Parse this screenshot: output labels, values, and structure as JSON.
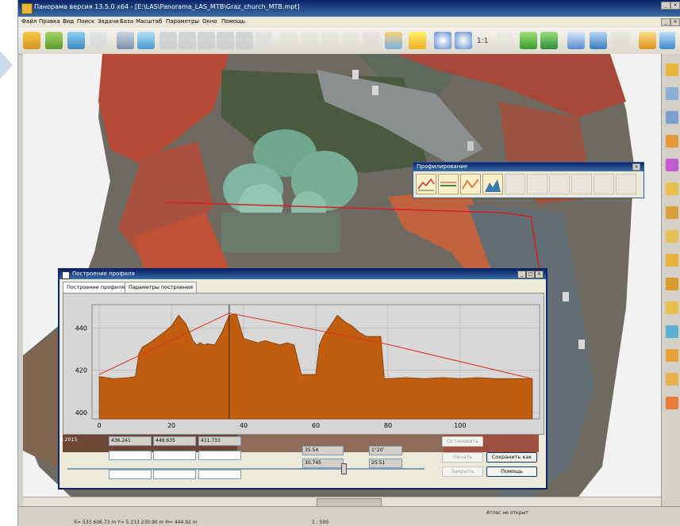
{
  "window": {
    "title": "Панорама версия 13.5.0 x64 - [E:\\LAS\\Panorama_LAS_MTB\\Graz_church_MTB.mpt]"
  },
  "menu": {
    "items": [
      "Файл",
      "Правка",
      "Вид",
      "Поиск",
      "Задачи",
      "База",
      "Масштаб",
      "Параметры",
      "Окно",
      "Помощь"
    ]
  },
  "toolbar": {
    "zoom_label": "1:1"
  },
  "profile_panel": {
    "title": "Профилирование"
  },
  "profile_dialog": {
    "title": "Построение профиля",
    "tabs": [
      "Построение профиля",
      "Параметры построения"
    ],
    "fields": {
      "left_label": "9.2015",
      "f1": "436.241",
      "f2": "449.635",
      "f3": "411.733",
      "f4": "35.54",
      "f5": "1°20'",
      "f6": "30.745",
      "f7": "25.51"
    },
    "buttons": {
      "apply": "Остановить",
      "print": "Печать",
      "save_as": "Сохранить как",
      "close": "Закрыть",
      "help": "Помощь"
    }
  },
  "status": {
    "coords": "X= 533 606.73 m  Y= 5 213 230.90 m  H= 444.92 m",
    "scale": "1 : 500",
    "atlas": "Атлас не открыт"
  },
  "chart_data": {
    "type": "area",
    "title": "",
    "xlabel": "",
    "ylabel": "",
    "xlim": [
      -2,
      122
    ],
    "ylim": [
      397,
      451
    ],
    "x_ticks": [
      0,
      20,
      40,
      60,
      80,
      100
    ],
    "y_ticks": [
      400,
      420,
      440
    ],
    "grid": true,
    "colors": {
      "fill": "#c05d0f",
      "line": "#e03020"
    },
    "series": [
      {
        "kind": "terrain",
        "x": [
          0,
          4,
          8,
          10,
          11,
          12,
          14,
          18,
          20,
          22,
          24,
          26,
          27,
          28,
          29,
          30,
          32,
          34,
          36,
          38,
          40,
          42,
          44,
          46,
          48,
          50,
          52,
          54,
          56,
          58,
          60,
          61,
          62,
          64,
          66,
          68,
          70,
          72,
          74,
          76,
          78,
          79,
          80,
          85,
          90,
          95,
          100,
          105,
          110,
          115,
          120
        ],
        "y": [
          417,
          416,
          416.5,
          417,
          428,
          431,
          433,
          438,
          441,
          446,
          442,
          434,
          432,
          433,
          432,
          432.5,
          432,
          438,
          446,
          446.5,
          435,
          434,
          433,
          434,
          433,
          432,
          433,
          432,
          418,
          418,
          418,
          432,
          436,
          441,
          446,
          443,
          441,
          438,
          436,
          436,
          436,
          416,
          416,
          416.5,
          416,
          416.5,
          416,
          416.5,
          416,
          416,
          416
        ]
      },
      {
        "kind": "line",
        "x": [
          0,
          36,
          78,
          120
        ],
        "y": [
          418,
          447,
          433,
          416
        ]
      }
    ],
    "vertical_marker_x": 36
  }
}
